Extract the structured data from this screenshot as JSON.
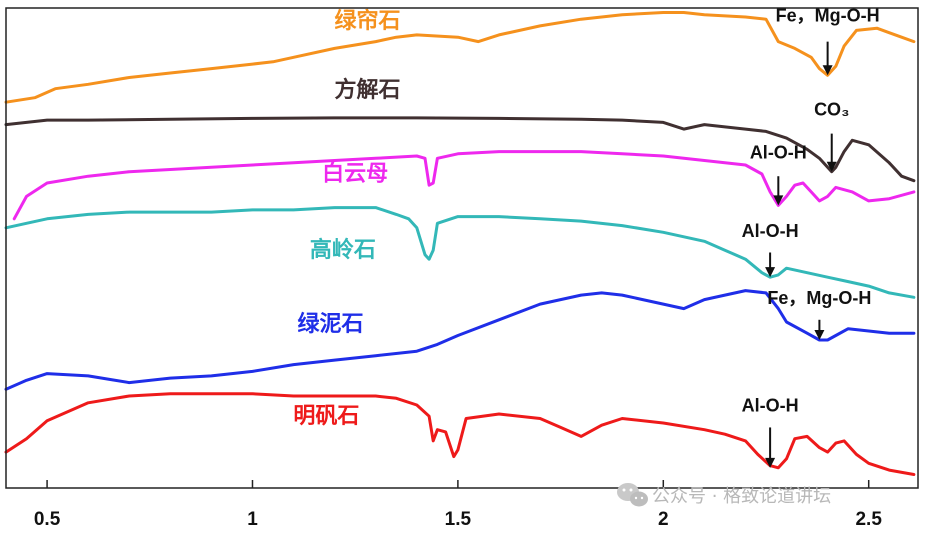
{
  "chart_data": {
    "type": "line",
    "title": "",
    "xlabel": "",
    "ylabel": "",
    "xlim": [
      0.4,
      2.62
    ],
    "ylim": [
      0,
      10.7
    ],
    "grid": false,
    "legend": "none",
    "x_ticks": [
      0.5,
      1,
      1.5,
      2,
      2.5
    ],
    "x_tick_labels": [
      "0.5",
      "1",
      "1.5",
      "2",
      "2.5"
    ],
    "series": [
      {
        "name": "绿帘石",
        "color": "#f5911d",
        "points": [
          [
            0.4,
            8.6
          ],
          [
            0.47,
            8.7
          ],
          [
            0.52,
            8.9
          ],
          [
            0.6,
            9.0
          ],
          [
            0.7,
            9.15
          ],
          [
            0.8,
            9.25
          ],
          [
            0.9,
            9.35
          ],
          [
            1.0,
            9.45
          ],
          [
            1.05,
            9.5
          ],
          [
            1.1,
            9.6
          ],
          [
            1.2,
            9.8
          ],
          [
            1.3,
            9.95
          ],
          [
            1.35,
            10.05
          ],
          [
            1.4,
            10.1
          ],
          [
            1.5,
            10.05
          ],
          [
            1.55,
            9.95
          ],
          [
            1.6,
            10.1
          ],
          [
            1.7,
            10.3
          ],
          [
            1.8,
            10.45
          ],
          [
            1.9,
            10.55
          ],
          [
            2.0,
            10.6
          ],
          [
            2.05,
            10.6
          ],
          [
            2.1,
            10.55
          ],
          [
            2.2,
            10.5
          ],
          [
            2.25,
            10.45
          ],
          [
            2.28,
            9.95
          ],
          [
            2.32,
            9.8
          ],
          [
            2.36,
            9.6
          ],
          [
            2.38,
            9.35
          ],
          [
            2.4,
            9.2
          ],
          [
            2.42,
            9.4
          ],
          [
            2.44,
            9.85
          ],
          [
            2.47,
            10.2
          ],
          [
            2.52,
            10.25
          ],
          [
            2.58,
            10.05
          ],
          [
            2.61,
            9.95
          ]
        ]
      },
      {
        "name": "方解石",
        "color": "#403031",
        "points": [
          [
            0.4,
            8.1
          ],
          [
            0.45,
            8.15
          ],
          [
            0.5,
            8.2
          ],
          [
            0.6,
            8.2
          ],
          [
            0.8,
            8.22
          ],
          [
            1.0,
            8.24
          ],
          [
            1.2,
            8.25
          ],
          [
            1.4,
            8.25
          ],
          [
            1.6,
            8.24
          ],
          [
            1.8,
            8.22
          ],
          [
            1.9,
            8.2
          ],
          [
            2.0,
            8.15
          ],
          [
            2.05,
            8.0
          ],
          [
            2.1,
            8.1
          ],
          [
            2.15,
            8.05
          ],
          [
            2.2,
            8.0
          ],
          [
            2.25,
            7.95
          ],
          [
            2.3,
            7.8
          ],
          [
            2.35,
            7.55
          ],
          [
            2.38,
            7.35
          ],
          [
            2.4,
            7.15
          ],
          [
            2.41,
            7.05
          ],
          [
            2.42,
            7.15
          ],
          [
            2.44,
            7.5
          ],
          [
            2.46,
            7.75
          ],
          [
            2.5,
            7.65
          ],
          [
            2.55,
            7.25
          ],
          [
            2.58,
            6.95
          ],
          [
            2.61,
            6.85
          ]
        ]
      },
      {
        "name": "白云母",
        "color": "#ee28ee",
        "points": [
          [
            0.42,
            6.0
          ],
          [
            0.45,
            6.5
          ],
          [
            0.5,
            6.8
          ],
          [
            0.6,
            6.95
          ],
          [
            0.7,
            7.05
          ],
          [
            0.8,
            7.1
          ],
          [
            0.9,
            7.15
          ],
          [
            1.0,
            7.2
          ],
          [
            1.1,
            7.25
          ],
          [
            1.2,
            7.3
          ],
          [
            1.3,
            7.35
          ],
          [
            1.4,
            7.4
          ],
          [
            1.42,
            7.35
          ],
          [
            1.43,
            6.75
          ],
          [
            1.44,
            6.8
          ],
          [
            1.45,
            7.35
          ],
          [
            1.5,
            7.45
          ],
          [
            1.6,
            7.5
          ],
          [
            1.7,
            7.5
          ],
          [
            1.8,
            7.5
          ],
          [
            1.9,
            7.45
          ],
          [
            2.0,
            7.4
          ],
          [
            2.1,
            7.3
          ],
          [
            2.2,
            7.2
          ],
          [
            2.24,
            7.0
          ],
          [
            2.26,
            6.6
          ],
          [
            2.28,
            6.3
          ],
          [
            2.3,
            6.5
          ],
          [
            2.32,
            6.75
          ],
          [
            2.34,
            6.8
          ],
          [
            2.36,
            6.6
          ],
          [
            2.38,
            6.4
          ],
          [
            2.4,
            6.5
          ],
          [
            2.42,
            6.7
          ],
          [
            2.46,
            6.6
          ],
          [
            2.5,
            6.4
          ],
          [
            2.55,
            6.45
          ],
          [
            2.61,
            6.6
          ]
        ]
      },
      {
        "name": "高岭石",
        "color": "#33b8b8",
        "points": [
          [
            0.4,
            5.8
          ],
          [
            0.45,
            5.9
          ],
          [
            0.5,
            6.0
          ],
          [
            0.6,
            6.1
          ],
          [
            0.7,
            6.15
          ],
          [
            0.8,
            6.15
          ],
          [
            0.9,
            6.15
          ],
          [
            1.0,
            6.2
          ],
          [
            1.1,
            6.2
          ],
          [
            1.2,
            6.25
          ],
          [
            1.3,
            6.25
          ],
          [
            1.35,
            6.1
          ],
          [
            1.38,
            6.0
          ],
          [
            1.4,
            5.8
          ],
          [
            1.42,
            5.2
          ],
          [
            1.43,
            5.1
          ],
          [
            1.44,
            5.3
          ],
          [
            1.45,
            5.9
          ],
          [
            1.5,
            6.05
          ],
          [
            1.6,
            6.05
          ],
          [
            1.7,
            6.0
          ],
          [
            1.8,
            5.95
          ],
          [
            1.9,
            5.85
          ],
          [
            2.0,
            5.7
          ],
          [
            2.1,
            5.5
          ],
          [
            2.15,
            5.3
          ],
          [
            2.2,
            5.1
          ],
          [
            2.24,
            4.8
          ],
          [
            2.26,
            4.7
          ],
          [
            2.28,
            4.75
          ],
          [
            2.3,
            4.9
          ],
          [
            2.35,
            4.8
          ],
          [
            2.4,
            4.7
          ],
          [
            2.45,
            4.6
          ],
          [
            2.5,
            4.5
          ],
          [
            2.55,
            4.35
          ],
          [
            2.61,
            4.25
          ]
        ]
      },
      {
        "name": "绿泥石",
        "color": "#1f2ee8",
        "points": [
          [
            0.4,
            2.2
          ],
          [
            0.45,
            2.4
          ],
          [
            0.5,
            2.55
          ],
          [
            0.6,
            2.5
          ],
          [
            0.7,
            2.35
          ],
          [
            0.8,
            2.45
          ],
          [
            0.9,
            2.5
          ],
          [
            1.0,
            2.6
          ],
          [
            1.1,
            2.75
          ],
          [
            1.2,
            2.85
          ],
          [
            1.3,
            2.95
          ],
          [
            1.4,
            3.05
          ],
          [
            1.45,
            3.2
          ],
          [
            1.5,
            3.4
          ],
          [
            1.6,
            3.75
          ],
          [
            1.7,
            4.1
          ],
          [
            1.8,
            4.3
          ],
          [
            1.85,
            4.35
          ],
          [
            1.9,
            4.3
          ],
          [
            2.0,
            4.1
          ],
          [
            2.05,
            4.0
          ],
          [
            2.1,
            4.2
          ],
          [
            2.15,
            4.3
          ],
          [
            2.2,
            4.4
          ],
          [
            2.25,
            4.35
          ],
          [
            2.28,
            4.0
          ],
          [
            2.3,
            3.7
          ],
          [
            2.35,
            3.45
          ],
          [
            2.38,
            3.3
          ],
          [
            2.4,
            3.3
          ],
          [
            2.42,
            3.4
          ],
          [
            2.45,
            3.55
          ],
          [
            2.5,
            3.5
          ],
          [
            2.55,
            3.45
          ],
          [
            2.61,
            3.45
          ]
        ]
      },
      {
        "name": "明矾石",
        "color": "#ee1a1a",
        "points": [
          [
            0.4,
            0.8
          ],
          [
            0.45,
            1.1
          ],
          [
            0.5,
            1.5
          ],
          [
            0.6,
            1.9
          ],
          [
            0.7,
            2.05
          ],
          [
            0.8,
            2.1
          ],
          [
            0.9,
            2.1
          ],
          [
            1.0,
            2.1
          ],
          [
            1.1,
            2.05
          ],
          [
            1.2,
            2.05
          ],
          [
            1.3,
            2.05
          ],
          [
            1.35,
            2.0
          ],
          [
            1.4,
            1.85
          ],
          [
            1.43,
            1.6
          ],
          [
            1.44,
            1.05
          ],
          [
            1.45,
            1.3
          ],
          [
            1.47,
            1.25
          ],
          [
            1.49,
            0.7
          ],
          [
            1.5,
            0.85
          ],
          [
            1.52,
            1.55
          ],
          [
            1.6,
            1.65
          ],
          [
            1.7,
            1.55
          ],
          [
            1.75,
            1.35
          ],
          [
            1.8,
            1.15
          ],
          [
            1.85,
            1.4
          ],
          [
            1.9,
            1.55
          ],
          [
            2.0,
            1.45
          ],
          [
            2.1,
            1.3
          ],
          [
            2.15,
            1.2
          ],
          [
            2.2,
            1.05
          ],
          [
            2.23,
            0.75
          ],
          [
            2.26,
            0.5
          ],
          [
            2.28,
            0.45
          ],
          [
            2.3,
            0.65
          ],
          [
            2.32,
            1.1
          ],
          [
            2.35,
            1.15
          ],
          [
            2.38,
            0.9
          ],
          [
            2.4,
            0.8
          ],
          [
            2.42,
            1.0
          ],
          [
            2.44,
            1.05
          ],
          [
            2.47,
            0.75
          ],
          [
            2.5,
            0.55
          ],
          [
            2.55,
            0.4
          ],
          [
            2.61,
            0.3
          ]
        ]
      }
    ],
    "labels": [
      {
        "text": "绿帘石",
        "series": 0,
        "x": 1.28,
        "y": 10.25
      },
      {
        "text": "方解石",
        "series": 1,
        "x": 1.28,
        "y": 8.72
      },
      {
        "text": "白云母",
        "series": 2,
        "x": 1.25,
        "y": 6.85
      },
      {
        "text": "高岭石",
        "series": 3,
        "x": 1.22,
        "y": 5.15
      },
      {
        "text": "绿泥石",
        "series": 4,
        "x": 1.19,
        "y": 3.5
      },
      {
        "text": "明矾石",
        "series": 5,
        "x": 1.18,
        "y": 1.45
      }
    ],
    "annotations": [
      {
        "text": "Fe，Mg-O-H",
        "x": 2.4,
        "y_text": 10.4,
        "arrow_from": 9.95,
        "arrow_to": 9.2
      },
      {
        "text": "CO₃",
        "x": 2.41,
        "y_text": 8.3,
        "arrow_from": 7.9,
        "arrow_to": 7.05
      },
      {
        "text": "Al-O-H",
        "x": 2.28,
        "y_text": 7.35,
        "arrow_from": 6.95,
        "arrow_to": 6.3
      },
      {
        "text": "Al-O-H",
        "x": 2.26,
        "y_text": 5.6,
        "arrow_from": 5.25,
        "arrow_to": 4.7
      },
      {
        "text": "Fe，Mg-O-H",
        "x": 2.38,
        "y_text": 4.1,
        "arrow_from": 3.75,
        "arrow_to": 3.3
      },
      {
        "text": "Al-O-H",
        "x": 2.26,
        "y_text": 1.7,
        "arrow_from": 1.35,
        "arrow_to": 0.45
      }
    ]
  },
  "watermark": {
    "icon": "wechat-icon",
    "text": "公众号 · 格致论道讲坛"
  }
}
